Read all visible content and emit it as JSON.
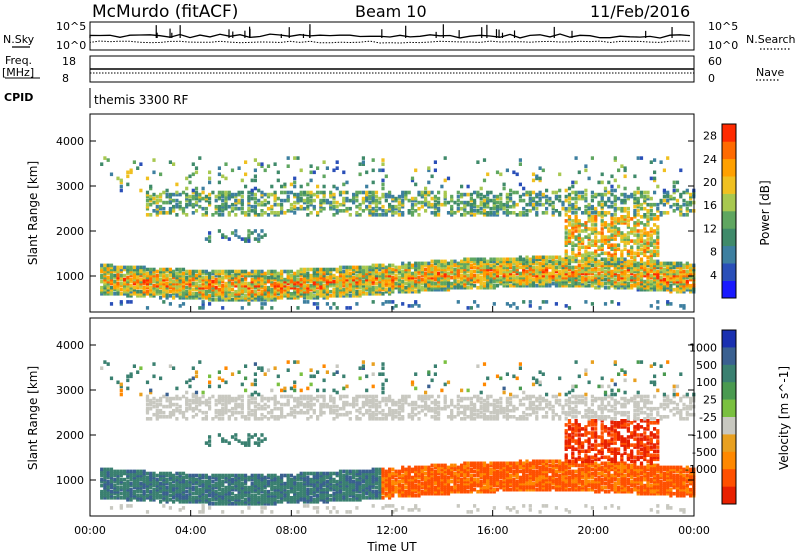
{
  "header": {
    "station": "McMurdo (fitACF)",
    "beam": "Beam 10",
    "date": "11/Feb/2016"
  },
  "top_panels": {
    "nsky_label": "N.Sky",
    "nsearch_label": "N.Search",
    "noise_tick_top": "10^5",
    "noise_tick_bottom": "10^0",
    "freq_label": "Freq.",
    "freq_unit": "[MHz]",
    "freq_tick_top": "18",
    "freq_tick_bottom": "8",
    "nave_label": "Nave",
    "nave_tick_top": "60",
    "nave_tick_bottom": "0",
    "cpid_label": "CPID",
    "cpid_value": "themis 3300 RF"
  },
  "colors": {
    "power_scale": [
      "#1a1aff",
      "#2a4fb8",
      "#3d7fa0",
      "#3f8a6a",
      "#5fa660",
      "#a8c850",
      "#f0c020",
      "#ffa000",
      "#ff6a00",
      "#ff2a00"
    ],
    "velocity_scale": [
      "#1a30b0",
      "#3a6090",
      "#3a8070",
      "#4a9a50",
      "#7ac040",
      "#c8c8c0",
      "#e8a020",
      "#ff8800",
      "#ff5000",
      "#e82000"
    ],
    "ground_scatter": "#c8c8c0"
  },
  "chart_data": [
    {
      "type": "heatmap",
      "title": "",
      "xlabel": "",
      "ylabel": "Slant Range [km]",
      "xlim_hours": [
        0,
        24
      ],
      "ylim_km": [
        200,
        4600
      ],
      "x_ticks": [
        "00:00",
        "04:00",
        "08:00",
        "12:00",
        "16:00",
        "20:00",
        "00:00"
      ],
      "y_ticks": [
        1000,
        2000,
        3000,
        4000
      ],
      "colorbar_label": "Power [dB]",
      "colorbar_ticks": [
        4,
        8,
        12,
        16,
        20,
        24,
        28
      ],
      "colorbar_range": [
        0,
        30
      ],
      "features": [
        {
          "name": "E/F-region band",
          "hours": [
            0,
            24
          ],
          "range_km": [
            600,
            1200
          ],
          "value_db": 22
        },
        {
          "name": "upper band",
          "hours": [
            2,
            24
          ],
          "range_km": [
            2300,
            2800
          ],
          "value_db": 12
        },
        {
          "name": "mid-range patches",
          "hours": [
            19,
            23
          ],
          "range_km": [
            1300,
            2200
          ],
          "value_db": 18
        }
      ]
    },
    {
      "type": "heatmap",
      "title": "",
      "xlabel": "Time UT",
      "ylabel": "Slant Range [km]",
      "xlim_hours": [
        0,
        24
      ],
      "ylim_km": [
        200,
        4600
      ],
      "x_ticks": [
        "00:00",
        "04:00",
        "08:00",
        "12:00",
        "16:00",
        "20:00",
        "00:00"
      ],
      "y_ticks": [
        1000,
        2000,
        3000,
        4000
      ],
      "colorbar_label": "Velocity [m s^-1]",
      "colorbar_ticks": [
        1000,
        500,
        100,
        25,
        -25,
        -100,
        -500,
        -1000
      ],
      "features": [
        {
          "name": "toward-radar flow",
          "hours": [
            1,
            11.5
          ],
          "range_km": [
            600,
            1400
          ],
          "value_ms": 300
        },
        {
          "name": "away-radar flow",
          "hours": [
            11.5,
            24
          ],
          "range_km": [
            700,
            1400
          ],
          "value_ms": -500
        },
        {
          "name": "ground scatter band",
          "hours": [
            2,
            24
          ],
          "range_km": [
            2300,
            2600
          ],
          "value_ms": 0
        },
        {
          "name": "strong away flow",
          "hours": [
            19,
            22
          ],
          "range_km": [
            1300,
            2300
          ],
          "value_ms": -800
        }
      ]
    }
  ]
}
